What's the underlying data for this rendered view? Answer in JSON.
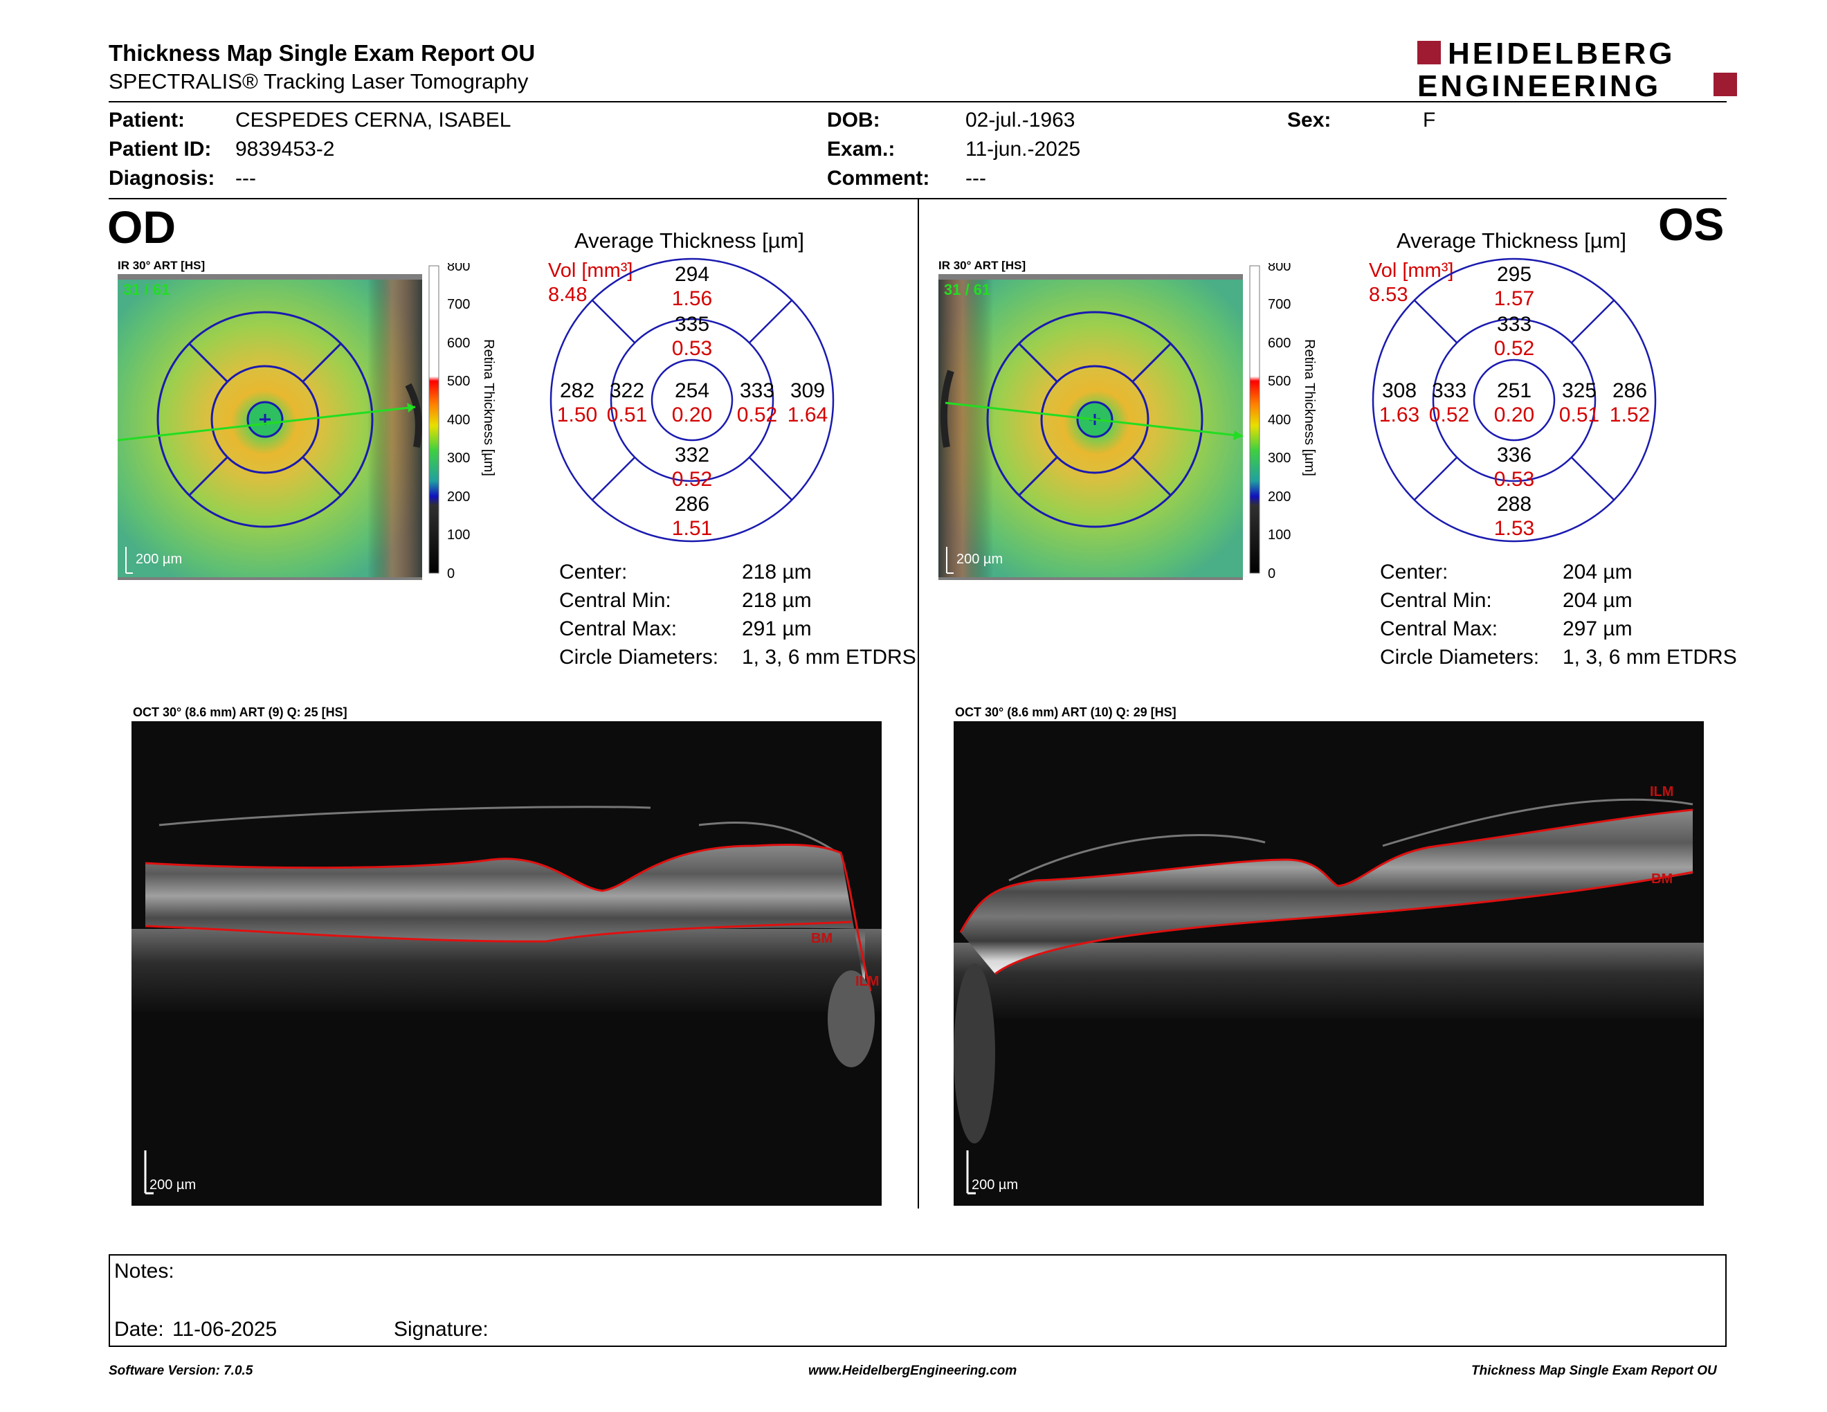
{
  "header": {
    "title": "Thickness Map Single Exam Report OU",
    "subtitle": "SPECTRALIS® Tracking Laser Tomography",
    "logo_line1": "HEIDELBERG",
    "logo_line2": "ENGINEERING"
  },
  "patient": {
    "patient_label": "Patient:",
    "patient_value": "CESPEDES CERNA, ISABEL",
    "id_label": "Patient ID:",
    "id_value": "9839453-2",
    "diagnosis_label": "Diagnosis:",
    "diagnosis_value": "---",
    "dob_label": "DOB:",
    "dob_value": "02-jul.-1963",
    "exam_label": "Exam.:",
    "exam_value": "11-jun.-2025",
    "comment_label": "Comment:",
    "comment_value": "---",
    "sex_label": "Sex:",
    "sex_value": "F"
  },
  "od": {
    "eye": "OD",
    "ir_label": "IR 30° ART [HS]",
    "frame_counter": "31 / 61",
    "scale": "200 µm",
    "avg_title": "Average Thickness [µm]",
    "vol_label": "Vol [mm³]",
    "vol_value": "8.48",
    "grid": {
      "center_t": "254",
      "center_v": "0.20",
      "inner_sup_t": "335",
      "inner_sup_v": "0.53",
      "inner_inf_t": "332",
      "inner_inf_v": "0.52",
      "inner_left_t": "322",
      "inner_left_v": "0.51",
      "inner_right_t": "333",
      "inner_right_v": "0.52",
      "outer_sup_t": "294",
      "outer_sup_v": "1.56",
      "outer_inf_t": "286",
      "outer_inf_v": "1.51",
      "outer_left_t": "282",
      "outer_left_v": "1.50",
      "outer_right_t": "309",
      "outer_right_v": "1.64"
    },
    "stats": {
      "center_label": "Center:",
      "center_value": "218 µm",
      "min_label": "Central Min:",
      "min_value": "218 µm",
      "max_label": "Central Max:",
      "max_value": "291 µm",
      "diam_label": "Circle Diameters:",
      "diam_value": "1, 3, 6 mm ETDRS"
    },
    "oct_label": "OCT 30° (8.6 mm) ART (9) Q: 25 [HS]",
    "oct_scale": "200 µm",
    "ilm": "ILM",
    "bm": "BM"
  },
  "os": {
    "eye": "OS",
    "ir_label": "IR 30° ART [HS]",
    "frame_counter": "31 / 61",
    "scale": "200 µm",
    "avg_title": "Average Thickness [µm]",
    "vol_label": "Vol [mm³]",
    "vol_value": "8.53",
    "grid": {
      "center_t": "251",
      "center_v": "0.20",
      "inner_sup_t": "333",
      "inner_sup_v": "0.52",
      "inner_inf_t": "336",
      "inner_inf_v": "0.53",
      "inner_left_t": "333",
      "inner_left_v": "0.52",
      "inner_right_t": "325",
      "inner_right_v": "0.51",
      "outer_sup_t": "295",
      "outer_sup_v": "1.57",
      "outer_inf_t": "288",
      "outer_inf_v": "1.53",
      "outer_left_t": "308",
      "outer_left_v": "1.63",
      "outer_right_t": "286",
      "outer_right_v": "1.52"
    },
    "stats": {
      "center_label": "Center:",
      "center_value": "204 µm",
      "min_label": "Central Min:",
      "min_value": "204 µm",
      "max_label": "Central Max:",
      "max_value": "297 µm",
      "diam_label": "Circle Diameters:",
      "diam_value": "1, 3, 6 mm ETDRS"
    },
    "oct_label": "OCT 30° (8.6 mm) ART (10) Q: 29 [HS]",
    "oct_scale": "200 µm",
    "ilm": "ILM",
    "bm": "BM"
  },
  "colorbar": {
    "title": "Retina Thickness [µm]",
    "ticks": [
      "800",
      "700",
      "600",
      "500",
      "400",
      "300",
      "200",
      "100",
      "0"
    ]
  },
  "notes": {
    "notes_label": "Notes:",
    "date_label": "Date:",
    "date_value": "11-06-2025",
    "signature_label": "Signature:"
  },
  "footer": {
    "version": "Software Version: 7.0.5",
    "website": "www.HeidelbergEngineering.com",
    "report_name": "Thickness Map Single Exam Report OU"
  },
  "colors": {
    "grid_blue": "#1a1ab0",
    "volume_red": "#d40000",
    "logo_red": "#9e1b32",
    "scan_green": "#22dd22",
    "segment_red": "#e01010"
  }
}
